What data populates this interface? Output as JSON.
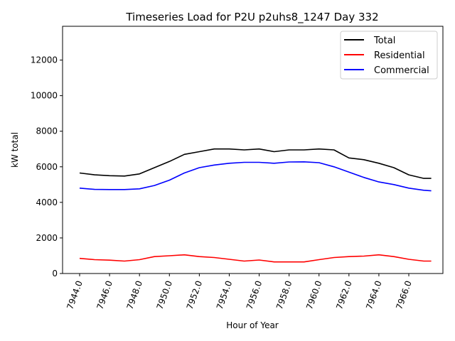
{
  "chart_data": {
    "type": "line",
    "title": "Timeseries Load for P2U p2uhs8_1247  Day 332",
    "xlabel": "Hour of Year",
    "ylabel": "kW total",
    "xlim": [
      7942.86,
      7968.28
    ],
    "ylim": [
      0,
      13900
    ],
    "xticks": [
      7944,
      7946,
      7948,
      7950,
      7952,
      7954,
      7956,
      7958,
      7960,
      7962,
      7964,
      7966
    ],
    "xtick_labels": [
      "7944.0",
      "7946.0",
      "7948.0",
      "7950.0",
      "7952.0",
      "7954.0",
      "7956.0",
      "7958.0",
      "7960.0",
      "7962.0",
      "7964.0",
      "7966.0"
    ],
    "yticks": [
      0,
      2000,
      4000,
      6000,
      8000,
      10000,
      12000
    ],
    "ytick_labels": [
      "0",
      "2000",
      "4000",
      "6000",
      "8000",
      "10000",
      "12000"
    ],
    "legend_position": "top-right",
    "grid": false,
    "x": [
      7944,
      7945,
      7946,
      7947,
      7948,
      7949,
      7950,
      7951,
      7952,
      7953,
      7954,
      7955,
      7956,
      7957,
      7958,
      7959,
      7960,
      7961,
      7962,
      7963,
      7964,
      7965,
      7966,
      7967,
      7967.5
    ],
    "series": [
      {
        "name": "Total",
        "color": "#000000",
        "values": [
          5650,
          5550,
          5500,
          5480,
          5600,
          5950,
          6300,
          6700,
          6850,
          7000,
          7000,
          6950,
          7000,
          6850,
          6950,
          6950,
          7000,
          6950,
          6500,
          6400,
          6200,
          5950,
          5550,
          5350,
          5350
        ]
      },
      {
        "name": "Residential",
        "color": "#ff0000",
        "values": [
          850,
          780,
          750,
          700,
          780,
          950,
          1000,
          1050,
          950,
          900,
          800,
          700,
          760,
          650,
          650,
          650,
          780,
          900,
          950,
          980,
          1050,
          950,
          800,
          700,
          700
        ]
      },
      {
        "name": "Commercial",
        "color": "#0000ff",
        "values": [
          4800,
          4730,
          4720,
          4720,
          4760,
          4950,
          5250,
          5650,
          5950,
          6100,
          6200,
          6250,
          6250,
          6200,
          6270,
          6280,
          6230,
          6000,
          5700,
          5400,
          5150,
          5000,
          4800,
          4680,
          4650
        ]
      }
    ]
  }
}
